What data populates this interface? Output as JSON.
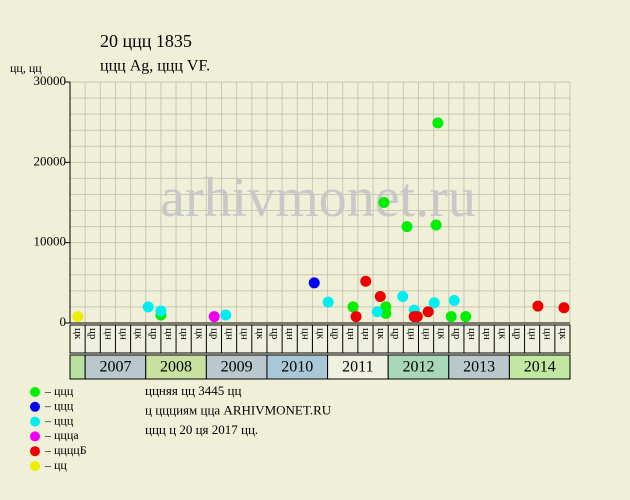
{
  "chart_data": {
    "type": "scatter",
    "title": "20 ццц 1835",
    "subtitle": "ццц Ag, ццц VF.",
    "y_label": "цц, цц",
    "watermark": "arhivmonet.ru",
    "xlim": [
      2006.75,
      2015.0
    ],
    "ylim": [
      0,
      30000
    ],
    "yticks": [
      0,
      10000,
      20000,
      30000
    ],
    "grid": true,
    "columns": [
      "цк",
      "цр",
      "цн",
      "цн",
      "цк",
      "цр",
      "цн",
      "цн",
      "цк",
      "цр",
      "цн",
      "цн",
      "цк",
      "цр",
      "цн",
      "цн",
      "цк",
      "цр",
      "цн",
      "цн",
      "цк",
      "цр",
      "цн",
      "цн",
      "цк",
      "цр",
      "цн",
      "цн",
      "цк",
      "цр",
      "цн",
      "цн",
      "цк"
    ],
    "years": [
      {
        "label": "2007",
        "color": "#b8c8cc"
      },
      {
        "label": "2008",
        "color": "#c8e0a0"
      },
      {
        "label": "2009",
        "color": "#b8c8cc"
      },
      {
        "label": "2010",
        "color": "#a8c8d8"
      },
      {
        "label": "2011",
        "color": "#f0f0e0"
      },
      {
        "label": "2012",
        "color": "#a8d8b8"
      },
      {
        "label": "2013",
        "color": "#b8c8cc"
      },
      {
        "label": "2014",
        "color": "#c0e8a0"
      }
    ],
    "series": [
      {
        "name": "– ццц",
        "color": "#00ee00",
        "x": [
          2008.25,
          2011.42,
          2011.93,
          2011.96,
          2011.96,
          2012.31,
          2012.79,
          2012.82,
          2013.04,
          2013.28
        ],
        "values": [
          1000,
          2000,
          15000,
          2000,
          1200,
          12000,
          12200,
          24900,
          800,
          800
        ]
      },
      {
        "name": "– ццц",
        "color": "#0000ee",
        "x": [
          2010.78
        ],
        "values": [
          5000
        ]
      },
      {
        "name": "– ццц",
        "color": "#00eeee",
        "x": [
          2008.04,
          2008.25,
          2009.32,
          2011.01,
          2011.82,
          2012.24,
          2012.43,
          2012.76,
          2013.09
        ],
        "values": [
          2000,
          1500,
          1000,
          2600,
          1400,
          3300,
          1600,
          2500,
          2800
        ]
      },
      {
        "name": "– ццца",
        "color": "#ee00ee",
        "x": [
          2009.13
        ],
        "values": [
          800
        ]
      },
      {
        "name": "– ццццБ",
        "color": "#ee0000",
        "x": [
          2011.47,
          2011.63,
          2011.87,
          2012.43,
          2012.48,
          2012.66,
          2014.47,
          2014.9
        ],
        "values": [
          800,
          5200,
          3300,
          800,
          800,
          1400,
          2100,
          1900
        ]
      },
      {
        "name": "– цц",
        "color": "#eeee00",
        "x": [
          2006.88
        ],
        "values": [
          800
        ]
      }
    ],
    "notes": [
      "ццняя цц 3445 цц",
      "ц ццциям цца ARHIVMONET.RU",
      "ццц ц 20 ця 2017 цц."
    ]
  }
}
